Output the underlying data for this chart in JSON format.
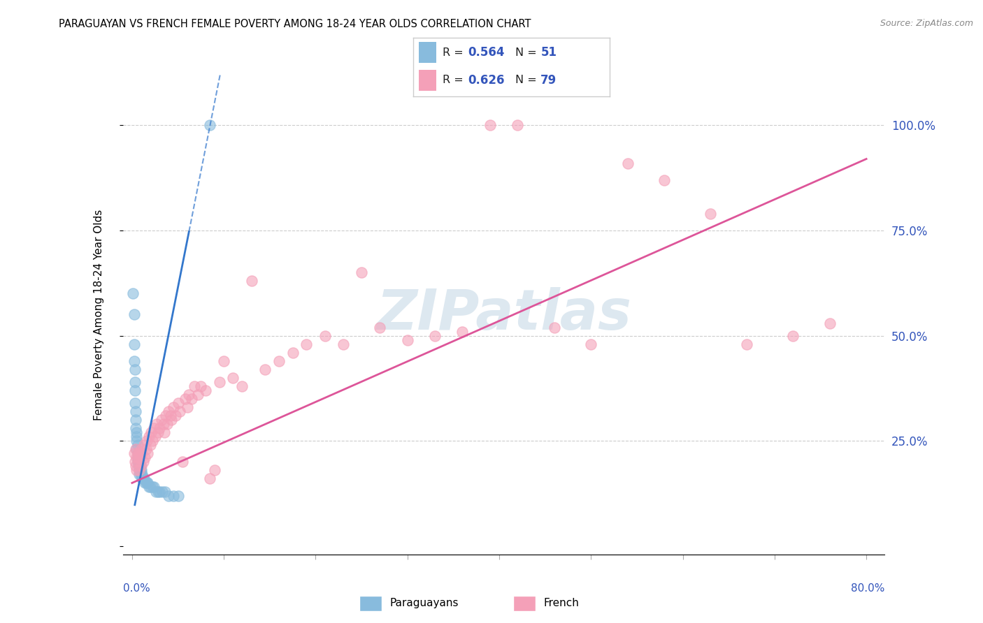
{
  "title": "PARAGUAYAN VS FRENCH FEMALE POVERTY AMONG 18-24 YEAR OLDS CORRELATION CHART",
  "source": "Source: ZipAtlas.com",
  "ylabel": "Female Poverty Among 18-24 Year Olds",
  "blue_R": 0.564,
  "blue_N": 51,
  "pink_R": 0.626,
  "pink_N": 79,
  "blue_color": "#88bbdd",
  "pink_color": "#f4a0b8",
  "blue_line_color": "#3377cc",
  "pink_line_color": "#dd5599",
  "watermark": "ZIPatlas",
  "watermark_color": "#dde8f0",
  "xlim": [
    0.0,
    0.8
  ],
  "ylim": [
    0.0,
    1.1
  ],
  "blue_scatter_x": [
    0.001,
    0.002,
    0.002,
    0.002,
    0.003,
    0.003,
    0.003,
    0.003,
    0.004,
    0.004,
    0.004,
    0.005,
    0.005,
    0.005,
    0.005,
    0.006,
    0.006,
    0.006,
    0.006,
    0.007,
    0.007,
    0.007,
    0.008,
    0.008,
    0.008,
    0.009,
    0.009,
    0.009,
    0.01,
    0.01,
    0.011,
    0.011,
    0.012,
    0.013,
    0.014,
    0.015,
    0.016,
    0.017,
    0.018,
    0.02,
    0.022,
    0.024,
    0.026,
    0.028,
    0.03,
    0.033,
    0.036,
    0.04,
    0.045,
    0.05,
    0.085
  ],
  "blue_scatter_y": [
    0.6,
    0.55,
    0.48,
    0.44,
    0.42,
    0.39,
    0.37,
    0.34,
    0.32,
    0.3,
    0.28,
    0.27,
    0.26,
    0.25,
    0.23,
    0.24,
    0.22,
    0.21,
    0.2,
    0.21,
    0.2,
    0.19,
    0.2,
    0.18,
    0.17,
    0.19,
    0.18,
    0.17,
    0.18,
    0.17,
    0.17,
    0.16,
    0.16,
    0.16,
    0.15,
    0.15,
    0.15,
    0.15,
    0.14,
    0.14,
    0.14,
    0.14,
    0.13,
    0.13,
    0.13,
    0.13,
    0.13,
    0.12,
    0.12,
    0.12,
    1.0
  ],
  "pink_scatter_x": [
    0.002,
    0.003,
    0.004,
    0.004,
    0.005,
    0.005,
    0.006,
    0.007,
    0.007,
    0.008,
    0.008,
    0.009,
    0.01,
    0.01,
    0.011,
    0.012,
    0.013,
    0.014,
    0.015,
    0.016,
    0.017,
    0.018,
    0.02,
    0.021,
    0.022,
    0.024,
    0.025,
    0.027,
    0.028,
    0.03,
    0.032,
    0.034,
    0.035,
    0.037,
    0.038,
    0.04,
    0.042,
    0.043,
    0.045,
    0.047,
    0.05,
    0.052,
    0.055,
    0.058,
    0.06,
    0.062,
    0.065,
    0.068,
    0.072,
    0.075,
    0.08,
    0.085,
    0.09,
    0.095,
    0.1,
    0.11,
    0.12,
    0.13,
    0.145,
    0.16,
    0.175,
    0.19,
    0.21,
    0.23,
    0.25,
    0.27,
    0.3,
    0.33,
    0.36,
    0.39,
    0.42,
    0.46,
    0.5,
    0.54,
    0.58,
    0.63,
    0.67,
    0.72,
    0.76
  ],
  "pink_scatter_y": [
    0.22,
    0.2,
    0.23,
    0.19,
    0.21,
    0.18,
    0.22,
    0.21,
    0.2,
    0.22,
    0.18,
    0.21,
    0.23,
    0.19,
    0.22,
    0.2,
    0.24,
    0.21,
    0.23,
    0.25,
    0.22,
    0.26,
    0.24,
    0.27,
    0.25,
    0.28,
    0.26,
    0.29,
    0.27,
    0.28,
    0.3,
    0.29,
    0.27,
    0.31,
    0.29,
    0.32,
    0.31,
    0.3,
    0.33,
    0.31,
    0.34,
    0.32,
    0.2,
    0.35,
    0.33,
    0.36,
    0.35,
    0.38,
    0.36,
    0.38,
    0.37,
    0.16,
    0.18,
    0.39,
    0.44,
    0.4,
    0.38,
    0.63,
    0.42,
    0.44,
    0.46,
    0.48,
    0.5,
    0.48,
    0.65,
    0.52,
    0.49,
    0.5,
    0.51,
    1.0,
    1.0,
    0.52,
    0.48,
    0.91,
    0.87,
    0.79,
    0.48,
    0.5,
    0.53
  ]
}
